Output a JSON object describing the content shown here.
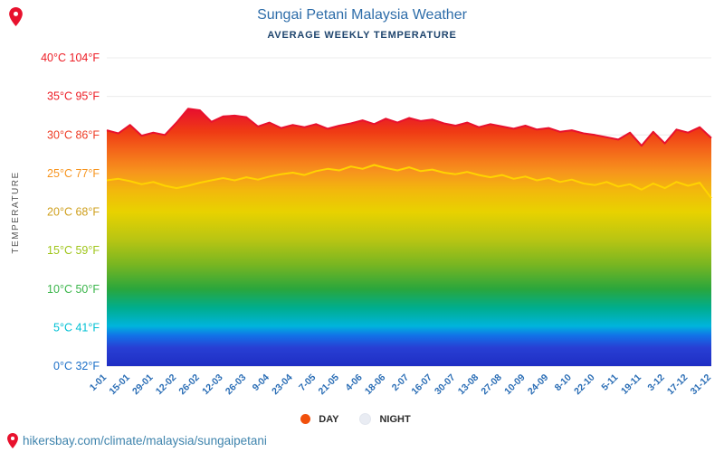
{
  "header": {
    "title": "Sungai Petani Malaysia Weather",
    "subtitle": "AVERAGE WEEKLY TEMPERATURE"
  },
  "legend": {
    "day": "DAY",
    "night": "NIGHT"
  },
  "footer": {
    "url": "hikersbay.com/climate/malaysia/sungaipetani"
  },
  "colors": {
    "title_blue": "#2e6da9",
    "subtitle_navy": "#1f456e",
    "x_label_blue": "#2a6db5",
    "day_dot": "#f1500c",
    "night_dot": "#e9ecf3",
    "day_line": "#e8112d",
    "night_line": "#ffd400",
    "pin_red": "#e8112d",
    "url_teal_blue": "#3f84ad"
  },
  "chart_data": {
    "type": "area",
    "title": "Sungai Petani Malaysia Weather",
    "subtitle": "AVERAGE WEEKLY TEMPERATURE",
    "ylabel": "TEMPERATURE",
    "ylim": [
      0,
      40
    ],
    "grid": true,
    "legend_position": "bottom",
    "y_ticks": [
      {
        "value": 40,
        "label": "40°C 104°F",
        "color": "#ed1c24"
      },
      {
        "value": 35,
        "label": "35°C 95°F",
        "color": "#ed1c24"
      },
      {
        "value": 30,
        "label": "30°C 86°F",
        "color": "#ee3b24"
      },
      {
        "value": 25,
        "label": "25°C 77°F",
        "color": "#f7941d"
      },
      {
        "value": 20,
        "label": "20°C 68°F",
        "color": "#cfa01e"
      },
      {
        "value": 15,
        "label": "15°C 59°F",
        "color": "#9fc519"
      },
      {
        "value": 10,
        "label": "10°C 50°F",
        "color": "#3ab54a"
      },
      {
        "value": 5,
        "label": "5°C 41°F",
        "color": "#00c0d4"
      },
      {
        "value": 0,
        "label": "0°C 32°F",
        "color": "#1d70c8"
      }
    ],
    "x_tick_labels": [
      "1-01",
      "15-01",
      "29-01",
      "12-02",
      "26-02",
      "12-03",
      "26-03",
      "9-04",
      "23-04",
      "7-05",
      "21-05",
      "4-06",
      "18-06",
      "2-07",
      "16-07",
      "30-07",
      "13-08",
      "27-08",
      "10-09",
      "24-09",
      "8-10",
      "22-10",
      "5-11",
      "19-11",
      "3-12",
      "17-12",
      "31-12"
    ],
    "series": [
      {
        "name": "DAY",
        "color": "#f1500c",
        "values": [
          30.6,
          30.2,
          31.3,
          29.9,
          30.3,
          30.0,
          31.6,
          33.4,
          33.2,
          31.7,
          32.4,
          32.5,
          32.3,
          31.1,
          31.6,
          30.9,
          31.3,
          31.0,
          31.4,
          30.8,
          31.2,
          31.5,
          31.9,
          31.4,
          32.1,
          31.6,
          32.2,
          31.8,
          32.0,
          31.5,
          31.2,
          31.6,
          31.0,
          31.4,
          31.1,
          30.8,
          31.2,
          30.7,
          30.9,
          30.4,
          30.6,
          30.2,
          30.0,
          29.7,
          29.4,
          30.3,
          28.6,
          30.4,
          28.9,
          30.7,
          30.3,
          31.0,
          29.6
        ]
      },
      {
        "name": "NIGHT",
        "color": "#e9ecf3",
        "values": [
          24.1,
          24.3,
          24.0,
          23.6,
          23.9,
          23.4,
          23.1,
          23.4,
          23.8,
          24.1,
          24.4,
          24.1,
          24.5,
          24.2,
          24.6,
          24.9,
          25.1,
          24.8,
          25.3,
          25.6,
          25.4,
          25.9,
          25.6,
          26.1,
          25.7,
          25.4,
          25.8,
          25.3,
          25.5,
          25.1,
          24.9,
          25.2,
          24.8,
          24.5,
          24.8,
          24.3,
          24.6,
          24.1,
          24.4,
          23.9,
          24.2,
          23.7,
          23.5,
          23.9,
          23.3,
          23.6,
          22.9,
          23.7,
          23.1,
          23.9,
          23.4,
          23.8,
          21.8
        ]
      }
    ],
    "gradient": [
      [
        0,
        "#1f2ec4"
      ],
      [
        6,
        "#283fd4"
      ],
      [
        10,
        "#1173e8"
      ],
      [
        13,
        "#00b4dc"
      ],
      [
        19,
        "#00ad8c"
      ],
      [
        25,
        "#2aa63c"
      ],
      [
        33,
        "#79b621"
      ],
      [
        41,
        "#b8c513"
      ],
      [
        50,
        "#e8d200"
      ],
      [
        57,
        "#f2b80d"
      ],
      [
        63,
        "#f7941d"
      ],
      [
        70,
        "#f4661a"
      ],
      [
        76,
        "#ef3b14"
      ],
      [
        83,
        "#e8112d"
      ],
      [
        100,
        "#d10000"
      ]
    ]
  }
}
